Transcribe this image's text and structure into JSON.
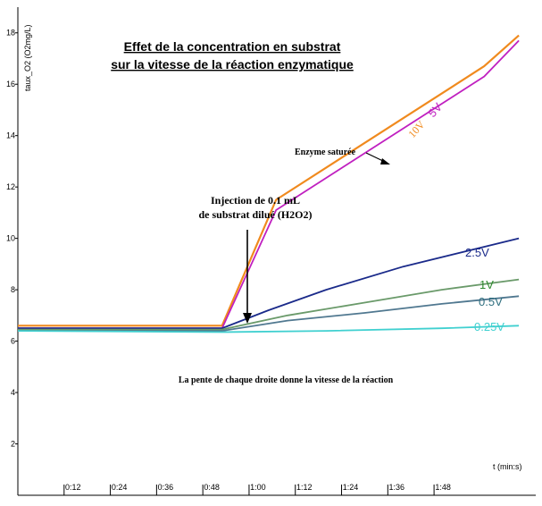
{
  "chart_data": {
    "type": "line",
    "title_line1": "Effet de la concentration en substrat",
    "title_line2": "sur la vitesse de la réaction enzymatique",
    "ylabel": "taux_O2 (O2mg/L)",
    "xlabel": "t (min:s)",
    "xlim": [
      0,
      133
    ],
    "ylim": [
      0,
      19
    ],
    "x_ticks": [
      12,
      24,
      36,
      48,
      60,
      72,
      84,
      96,
      108
    ],
    "x_tick_labels": [
      "0:12",
      "0:24",
      "0:36",
      "0:48",
      "1:00",
      "1:12",
      "1:24",
      "1:36",
      "1:48"
    ],
    "y_ticks": [
      2,
      4,
      6,
      8,
      10,
      12,
      14,
      16,
      18
    ],
    "y_tick_labels": [
      "2",
      "4",
      "6",
      "8",
      "10",
      "12",
      "14",
      "16",
      "18"
    ],
    "series": [
      {
        "name": "10V",
        "color": "#f08a1e",
        "x": [
          0,
          53,
          67,
          121,
          130
        ],
        "y": [
          6.6,
          6.6,
          11.5,
          16.7,
          17.9
        ]
      },
      {
        "name": "5V",
        "color": "#c020c0",
        "x": [
          0,
          53,
          67,
          121,
          130
        ],
        "y": [
          6.5,
          6.5,
          11.1,
          16.3,
          17.7
        ]
      },
      {
        "name": "2.5V",
        "color": "#1a2a8a",
        "x": [
          0,
          53,
          65,
          80,
          100,
          130
        ],
        "y": [
          6.5,
          6.5,
          7.2,
          8.0,
          8.9,
          10.0
        ]
      },
      {
        "name": "1V",
        "color": "#6a9a6a",
        "x": [
          0,
          53,
          70,
          90,
          110,
          130
        ],
        "y": [
          6.45,
          6.45,
          7.0,
          7.5,
          8.0,
          8.4
        ]
      },
      {
        "name": "0.5V",
        "color": "#507890",
        "x": [
          0,
          53,
          70,
          90,
          110,
          130
        ],
        "y": [
          6.4,
          6.4,
          6.8,
          7.1,
          7.45,
          7.75
        ]
      },
      {
        "name": "0.25V",
        "color": "#40d0d0",
        "x": [
          0,
          53,
          80,
          110,
          130
        ],
        "y": [
          6.4,
          6.35,
          6.4,
          6.5,
          6.6
        ]
      }
    ],
    "annotations": {
      "injection_line1": "Injection de 0.1 mL",
      "injection_line2": "de substrat dilué (H2O2)",
      "saturated": "Enzyme saturée",
      "slope_note": "La pente de chaque droite donne la vitesse de la réaction"
    },
    "grid": false,
    "legend": "inline labels"
  }
}
